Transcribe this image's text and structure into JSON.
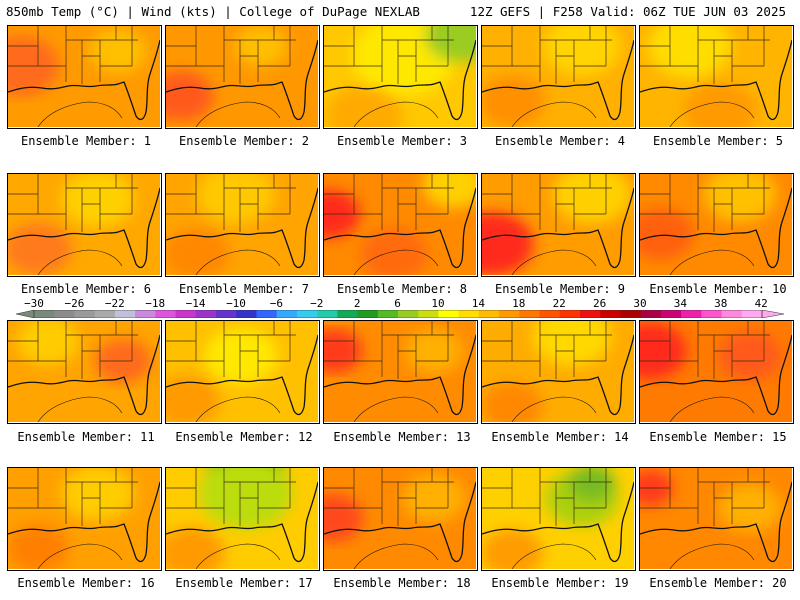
{
  "header": {
    "left": "850mb Temp (°C) | Wind (kts) | College of DuPage NEXLAB",
    "right": "12Z GEFS | F258 Valid: 06Z TUE JUN 03 2025"
  },
  "colorbar": {
    "labels": [
      "−30",
      "−26",
      "−22",
      "−18",
      "−14",
      "−10",
      "−6",
      "−2",
      "2",
      "6",
      "10",
      "14",
      "18",
      "22",
      "26",
      "30",
      "34",
      "38",
      "42"
    ],
    "colors": [
      "#7a8a7a",
      "#8c8c8c",
      "#9a9a9a",
      "#aaaaaa",
      "#c0c0d8",
      "#cc88dd",
      "#dd55dd",
      "#cc33cc",
      "#9933cc",
      "#6633cc",
      "#3333cc",
      "#3366ff",
      "#33aaff",
      "#33ccee",
      "#22ccaa",
      "#11aa55",
      "#229922",
      "#55bb22",
      "#99cc22",
      "#ccdd11",
      "#ffff00",
      "#ffdd00",
      "#ffbb00",
      "#ff9900",
      "#ff7700",
      "#ff5500",
      "#ff3300",
      "#ee1111",
      "#cc0000",
      "#aa0000",
      "#aa0044",
      "#cc0077",
      "#ee22aa",
      "#ff55cc",
      "#ff88dd",
      "#ffaaee"
    ]
  },
  "members": [
    {
      "label": "Ensemble Member: 1",
      "base": "#ff9a00",
      "accents": [
        {
          "c": "#ff6a1a",
          "x": 12,
          "y": 40,
          "r": 30
        },
        {
          "c": "#ffc000",
          "x": 110,
          "y": 25,
          "r": 22
        }
      ]
    },
    {
      "label": "Ensemble Member: 2",
      "base": "#ff9800",
      "accents": [
        {
          "c": "#ff5a1a",
          "x": 15,
          "y": 70,
          "r": 25
        },
        {
          "c": "#ffbf00",
          "x": 95,
          "y": 20,
          "r": 20
        }
      ]
    },
    {
      "label": "Ensemble Member: 3",
      "base": "#ffc800",
      "accents": [
        {
          "c": "#ffe800",
          "x": 80,
          "y": 30,
          "r": 40
        },
        {
          "c": "#9acc22",
          "x": 135,
          "y": 10,
          "r": 26
        },
        {
          "c": "#ffaa00",
          "x": 40,
          "y": 90,
          "r": 30
        }
      ]
    },
    {
      "label": "Ensemble Member: 4",
      "base": "#ffb000",
      "accents": [
        {
          "c": "#ffd400",
          "x": 100,
          "y": 20,
          "r": 30
        },
        {
          "c": "#ff9000",
          "x": 30,
          "y": 75,
          "r": 26
        }
      ]
    },
    {
      "label": "Ensemble Member: 5",
      "base": "#ffb400",
      "accents": [
        {
          "c": "#ffdd00",
          "x": 50,
          "y": 20,
          "r": 32
        },
        {
          "c": "#ff9a00",
          "x": 80,
          "y": 85,
          "r": 28
        }
      ]
    },
    {
      "label": "Ensemble Member: 6",
      "base": "#ffa800",
      "accents": [
        {
          "c": "#ff7a1a",
          "x": 30,
          "y": 75,
          "r": 26
        },
        {
          "c": "#ffd000",
          "x": 90,
          "y": 25,
          "r": 28
        }
      ]
    },
    {
      "label": "Ensemble Member: 7",
      "base": "#ffa400",
      "accents": [
        {
          "c": "#ffc800",
          "x": 70,
          "y": 20,
          "r": 30
        },
        {
          "c": "#ff8800",
          "x": 30,
          "y": 80,
          "r": 26
        }
      ]
    },
    {
      "label": "Ensemble Member: 8",
      "base": "#ff8a00",
      "accents": [
        {
          "c": "#ff2a1a",
          "x": 5,
          "y": 40,
          "r": 24
        },
        {
          "c": "#ffd000",
          "x": 130,
          "y": 10,
          "r": 24
        },
        {
          "c": "#ff6a10",
          "x": 70,
          "y": 80,
          "r": 26
        }
      ]
    },
    {
      "label": "Ensemble Member: 9",
      "base": "#ff9c00",
      "accents": [
        {
          "c": "#ff2a1a",
          "x": 10,
          "y": 70,
          "r": 32
        },
        {
          "c": "#ffd000",
          "x": 110,
          "y": 20,
          "r": 30
        }
      ]
    },
    {
      "label": "Ensemble Member: 10",
      "base": "#ff8a00",
      "accents": [
        {
          "c": "#ffc000",
          "x": 100,
          "y": 20,
          "r": 28
        },
        {
          "c": "#ff6010",
          "x": 20,
          "y": 60,
          "r": 26
        }
      ]
    },
    {
      "label": "Ensemble Member: 11",
      "base": "#ffa400",
      "accents": [
        {
          "c": "#ff6a1a",
          "x": 115,
          "y": 40,
          "r": 22
        },
        {
          "c": "#ffcc00",
          "x": 40,
          "y": 20,
          "r": 24
        }
      ]
    },
    {
      "label": "Ensemble Member: 12",
      "base": "#ffc000",
      "accents": [
        {
          "c": "#ffe800",
          "x": 75,
          "y": 35,
          "r": 28
        },
        {
          "c": "#ff9a00",
          "x": 20,
          "y": 80,
          "r": 26
        }
      ]
    },
    {
      "label": "Ensemble Member: 13",
      "base": "#ff8c00",
      "accents": [
        {
          "c": "#ff3a1a",
          "x": 10,
          "y": 30,
          "r": 22
        },
        {
          "c": "#ffb000",
          "x": 110,
          "y": 30,
          "r": 22
        }
      ]
    },
    {
      "label": "Ensemble Member: 14",
      "base": "#ffac00",
      "accents": [
        {
          "c": "#ffd800",
          "x": 90,
          "y": 15,
          "r": 30
        },
        {
          "c": "#ff8800",
          "x": 30,
          "y": 85,
          "r": 24
        }
      ]
    },
    {
      "label": "Ensemble Member: 15",
      "base": "#ff7a00",
      "accents": [
        {
          "c": "#ff2a1a",
          "x": 10,
          "y": 30,
          "r": 28
        },
        {
          "c": "#ff5a1a",
          "x": 110,
          "y": 35,
          "r": 24
        }
      ]
    },
    {
      "label": "Ensemble Member: 16",
      "base": "#ffa000",
      "accents": [
        {
          "c": "#ffcc00",
          "x": 90,
          "y": 25,
          "r": 28
        },
        {
          "c": "#ff8000",
          "x": 30,
          "y": 80,
          "r": 24
        }
      ]
    },
    {
      "label": "Ensemble Member: 17",
      "base": "#ffcc00",
      "accents": [
        {
          "c": "#55aa22",
          "x": 80,
          "y": 5,
          "r": 30
        },
        {
          "c": "#bbdd11",
          "x": 80,
          "y": 25,
          "r": 36
        },
        {
          "c": "#ff9a00",
          "x": 25,
          "y": 85,
          "r": 26
        }
      ]
    },
    {
      "label": "Ensemble Member: 18",
      "base": "#ff8a00",
      "accents": [
        {
          "c": "#ff4a1a",
          "x": 8,
          "y": 50,
          "r": 24
        },
        {
          "c": "#ffb000",
          "x": 110,
          "y": 30,
          "r": 24
        }
      ]
    },
    {
      "label": "Ensemble Member: 19",
      "base": "#ffd000",
      "accents": [
        {
          "c": "#aad011",
          "x": 100,
          "y": 30,
          "r": 28
        },
        {
          "c": "#77bb22",
          "x": 110,
          "y": 15,
          "r": 18
        },
        {
          "c": "#ff9c00",
          "x": 30,
          "y": 85,
          "r": 24
        }
      ]
    },
    {
      "label": "Ensemble Member: 20",
      "base": "#ff8800",
      "accents": [
        {
          "c": "#ff3a1a",
          "x": 10,
          "y": 20,
          "r": 18
        },
        {
          "c": "#ffb000",
          "x": 110,
          "y": 40,
          "r": 24
        }
      ]
    }
  ]
}
